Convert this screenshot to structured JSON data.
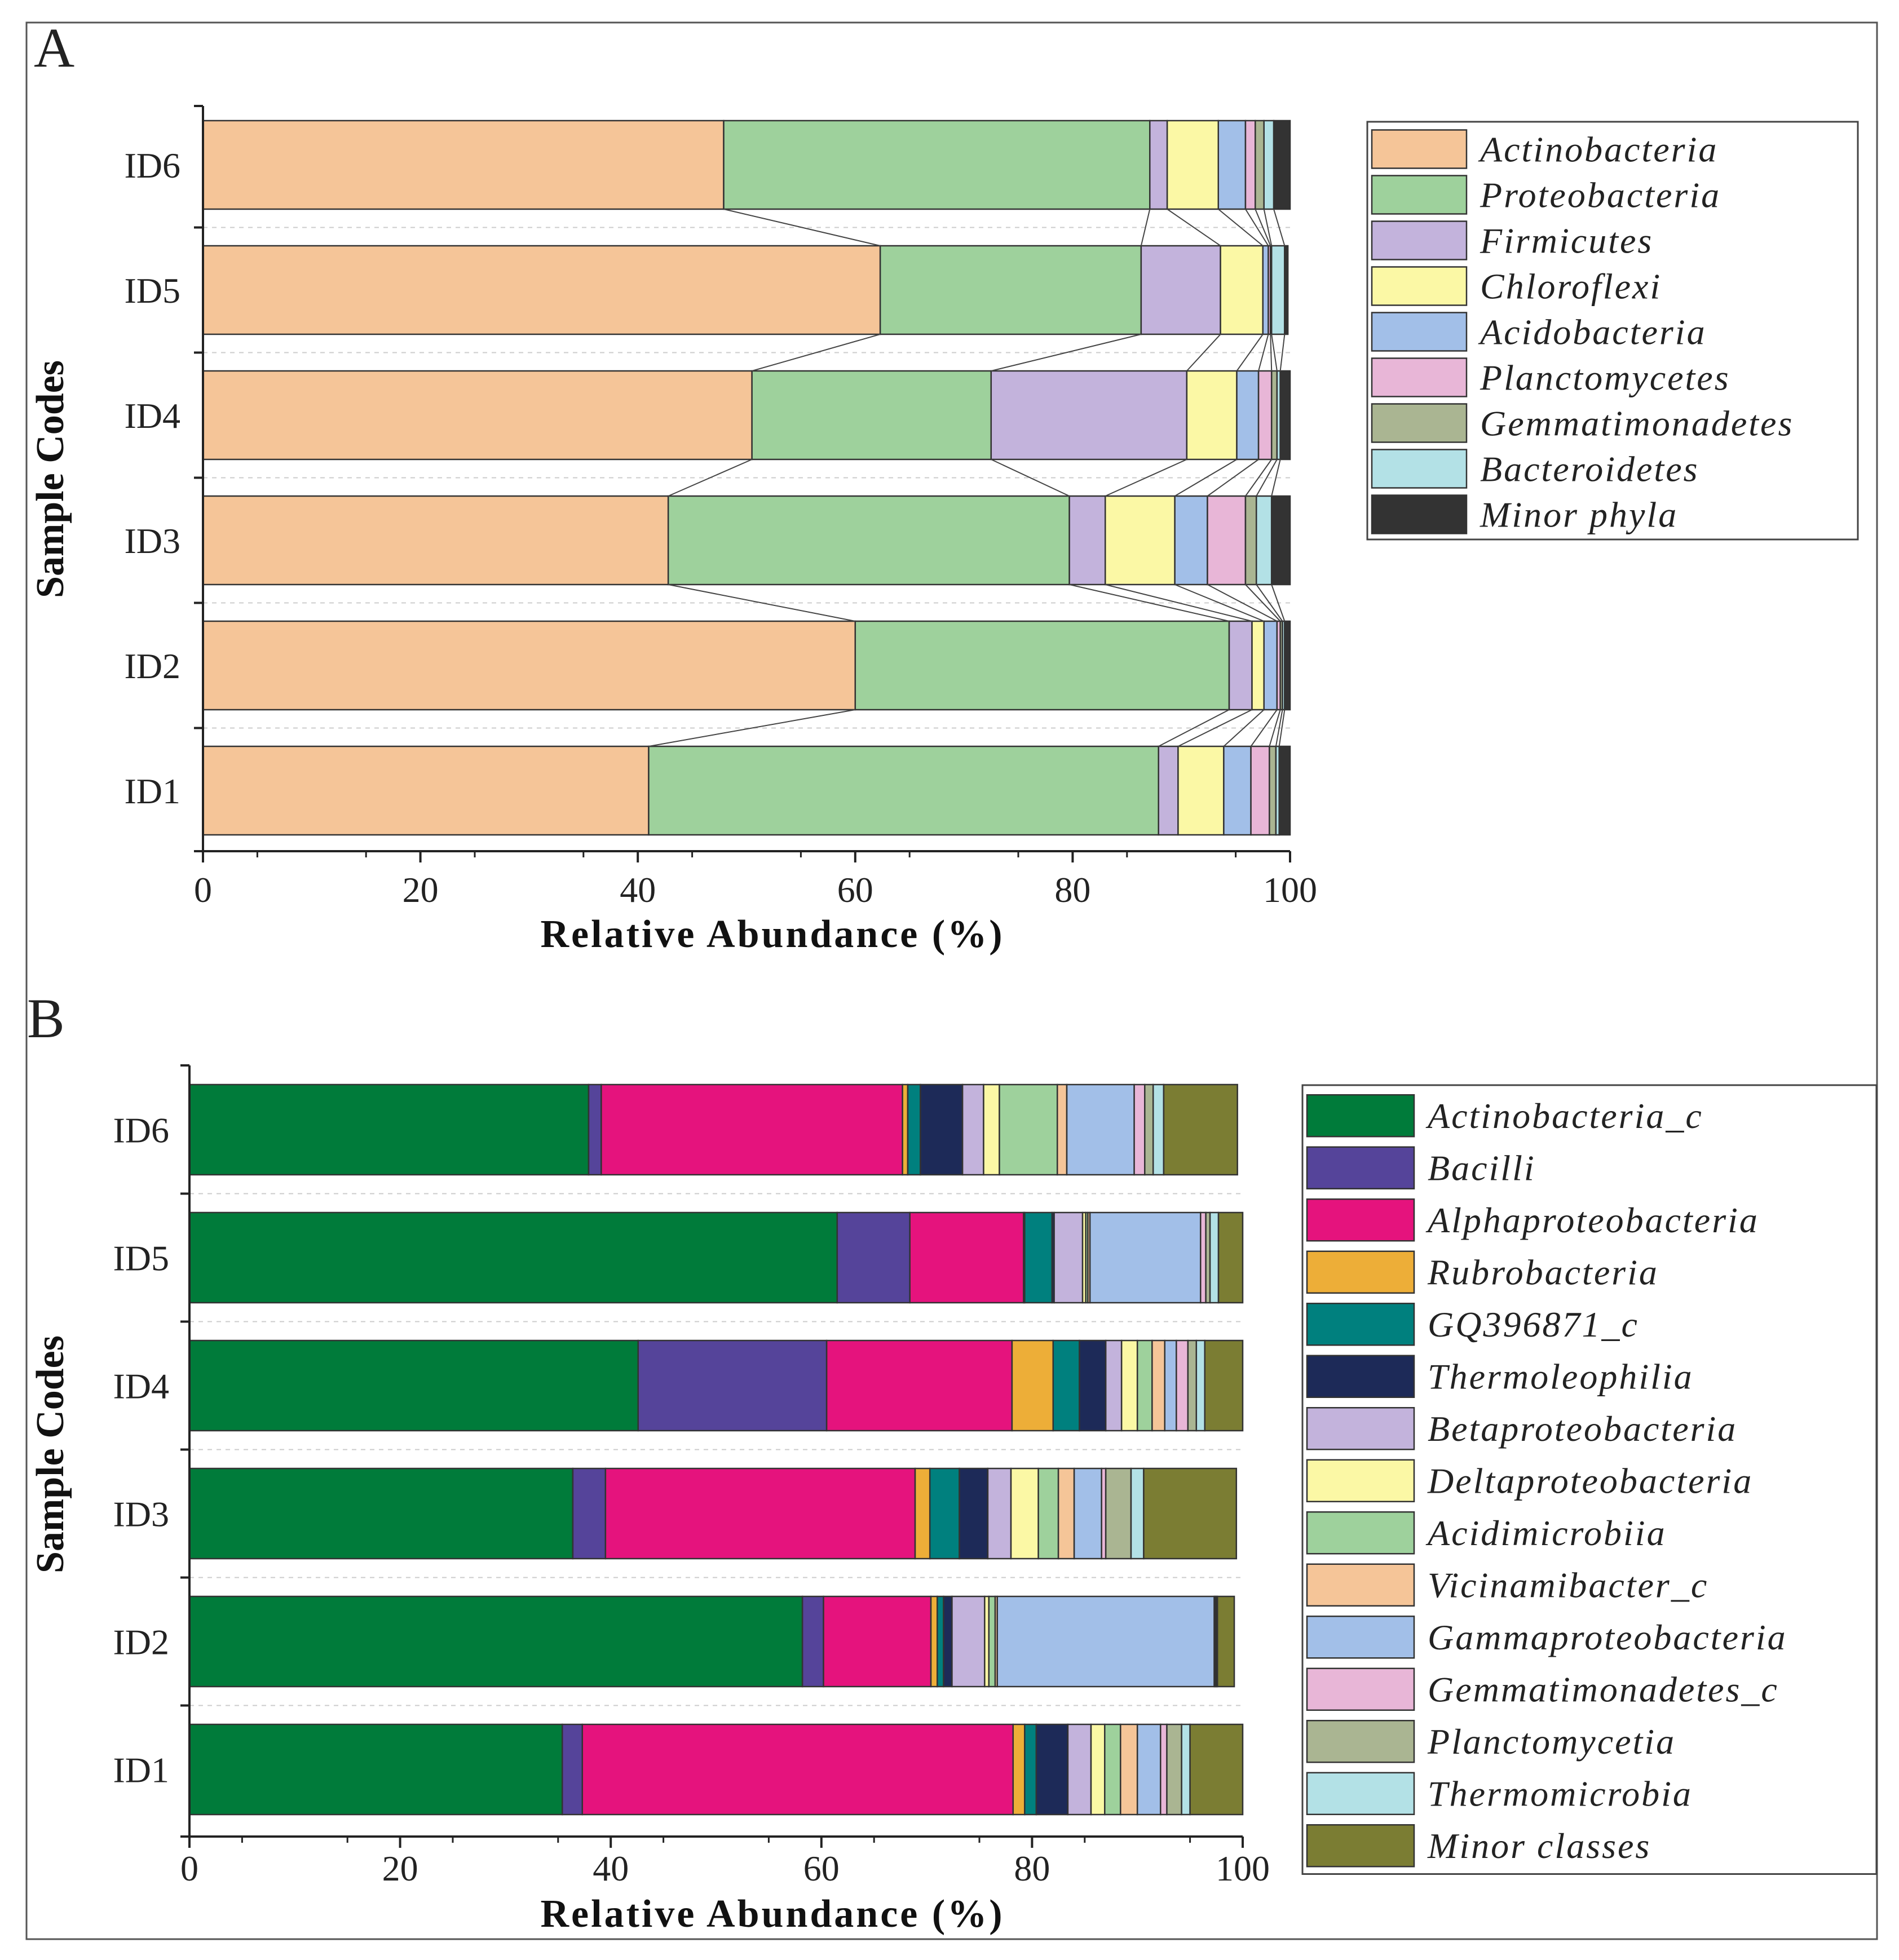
{
  "chart_data": [
    {
      "panel_label": "A",
      "type": "bar",
      "orientation": "horizontal",
      "stacked": true,
      "connector_lines": true,
      "categories": [
        "ID1",
        "ID2",
        "ID3",
        "ID4",
        "ID5",
        "ID6"
      ],
      "xlabel": "Relative Abundance (%)",
      "ylabel": "Sample Codes",
      "xlim": [
        0,
        100
      ],
      "xticks": [
        "0",
        "20",
        "40",
        "60",
        "80",
        "100"
      ],
      "legend_position": "top-right",
      "series": [
        {
          "name": "Actinobacteria",
          "color": "#f5c598",
          "values": [
            41.0,
            60.0,
            42.8,
            50.5,
            62.3,
            47.9
          ]
        },
        {
          "name": "Proteobacteria",
          "color": "#9ed19c",
          "values": [
            46.9,
            34.4,
            36.9,
            22.0,
            24.0,
            39.2
          ]
        },
        {
          "name": "Firmicutes",
          "color": "#c3b3dc",
          "values": [
            1.8,
            2.1,
            3.3,
            18.0,
            7.3,
            1.6
          ]
        },
        {
          "name": "Chloroflexi",
          "color": "#fbf8a5",
          "values": [
            4.2,
            1.1,
            6.4,
            4.6,
            3.9,
            4.7
          ]
        },
        {
          "name": "Acidobacteria",
          "color": "#a2bfe8",
          "values": [
            2.5,
            1.2,
            3.0,
            2.0,
            0.5,
            2.5
          ]
        },
        {
          "name": "Planctomycetes",
          "color": "#e8b6d7",
          "values": [
            1.7,
            0.3,
            3.5,
            1.2,
            0.2,
            0.9
          ]
        },
        {
          "name": "Gemmatimonadetes",
          "color": "#aab592",
          "values": [
            0.6,
            0.2,
            1.0,
            0.5,
            0.1,
            0.8
          ]
        },
        {
          "name": "Bacteroidetes",
          "color": "#b3e1e6",
          "values": [
            0.3,
            0.2,
            1.4,
            0.3,
            1.2,
            0.9
          ]
        },
        {
          "name": "Minor phyla",
          "color": "#333333",
          "values": [
            1.0,
            0.5,
            1.7,
            0.9,
            0.3,
            1.5
          ]
        }
      ]
    },
    {
      "panel_label": "B",
      "type": "bar",
      "orientation": "horizontal",
      "stacked": true,
      "connector_lines": false,
      "categories": [
        "ID1",
        "ID2",
        "ID3",
        "ID4",
        "ID5",
        "ID6"
      ],
      "xlabel": "Relative Abundance (%)",
      "ylabel": "Sample Codes",
      "xlim": [
        0,
        100
      ],
      "xticks": [
        "0",
        "20",
        "40",
        "60",
        "80",
        "100"
      ],
      "legend_position": "right",
      "series": [
        {
          "name": "Actinobacteria_c",
          "color": "#007b3a",
          "values": [
            35.4,
            58.2,
            36.4,
            42.6,
            61.5,
            37.9
          ]
        },
        {
          "name": "Bacilli",
          "color": "#55449a",
          "values": [
            1.9,
            2.0,
            3.1,
            17.9,
            6.9,
            1.2
          ]
        },
        {
          "name": "Alphaproteobacteria",
          "color": "#e5137d",
          "values": [
            40.9,
            10.2,
            29.4,
            17.6,
            10.8,
            28.6
          ]
        },
        {
          "name": "Rubrobacteria",
          "color": "#edae38",
          "values": [
            1.1,
            0.6,
            1.4,
            3.9,
            0.1,
            0.5
          ]
        },
        {
          "name": "GQ396871_c",
          "color": "#00807e",
          "values": [
            1.1,
            0.6,
            2.8,
            2.5,
            2.6,
            1.2
          ]
        },
        {
          "name": "Thermoleophilia",
          "color": "#1d2a58",
          "values": [
            3.0,
            0.8,
            2.7,
            2.5,
            0.2,
            4.0
          ]
        },
        {
          "name": "Betaproteobacteria",
          "color": "#c3b3dc",
          "values": [
            2.2,
            3.1,
            2.2,
            1.5,
            2.7,
            2.0
          ]
        },
        {
          "name": "Deltaproteobacteria",
          "color": "#fbf8a5",
          "values": [
            1.3,
            0.4,
            2.6,
            1.5,
            0.3,
            1.5
          ]
        },
        {
          "name": "Acidimicrobiia",
          "color": "#9ed19c",
          "values": [
            1.5,
            0.6,
            1.9,
            1.4,
            0.2,
            5.5
          ]
        },
        {
          "name": "Vicinamibacter_c",
          "color": "#f5c598",
          "values": [
            1.6,
            0.2,
            1.5,
            1.2,
            0.2,
            0.9
          ]
        },
        {
          "name": "Gammaproteobacteria",
          "color": "#a2bfe8",
          "values": [
            2.2,
            20.6,
            2.6,
            1.1,
            10.5,
            6.4
          ]
        },
        {
          "name": "Gemmatimonadetes_c",
          "color": "#e8b6d7",
          "values": [
            0.6,
            0.1,
            0.4,
            1.1,
            0.5,
            1.0
          ]
        },
        {
          "name": "Planctomycetia",
          "color": "#aab592",
          "values": [
            1.4,
            0.1,
            2.4,
            0.8,
            0.4,
            0.8
          ]
        },
        {
          "name": "Thermomicrobia",
          "color": "#b3e1e6",
          "values": [
            0.8,
            0.1,
            1.2,
            0.8,
            0.8,
            1.0
          ]
        },
        {
          "name": "Minor classes",
          "color": "#7b7d33",
          "values": [
            5.0,
            1.6,
            8.8,
            3.6,
            2.3,
            7.0
          ]
        }
      ]
    }
  ]
}
